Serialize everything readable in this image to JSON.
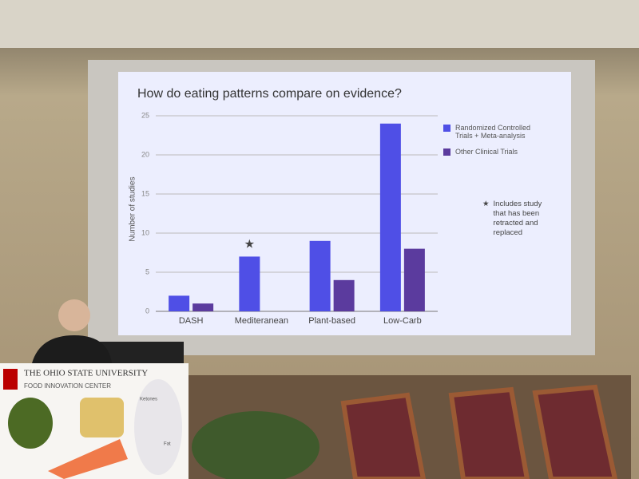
{
  "chart_data": {
    "type": "bar",
    "title": "How do eating patterns compare on evidence?",
    "y_label": "Number of studies",
    "categories": [
      "DASH",
      "Mediteranean",
      "Plant-based",
      "Low-Carb"
    ],
    "series": [
      {
        "name": "Randomized Controlled Trials + Meta-analysis",
        "color": "#4f4fe6",
        "values": [
          2,
          7,
          9,
          24
        ]
      },
      {
        "name": "Other Clinical Trials",
        "color": "#5b3b9e",
        "values": [
          1,
          0,
          4,
          8
        ]
      }
    ],
    "ylim": [
      0,
      25
    ],
    "yticks": [
      0,
      5,
      10,
      15,
      20,
      25
    ],
    "grid": true,
    "legend": "right",
    "annotation": {
      "symbol": "★",
      "text": "Includes study that has been retracted and replaced",
      "category_index": 1
    }
  },
  "podium": {
    "university": "THE OHIO STATE UNIVERSITY",
    "center": "FOOD INNOVATION CENTER",
    "labels": [
      "Ketones",
      "Fat"
    ]
  }
}
